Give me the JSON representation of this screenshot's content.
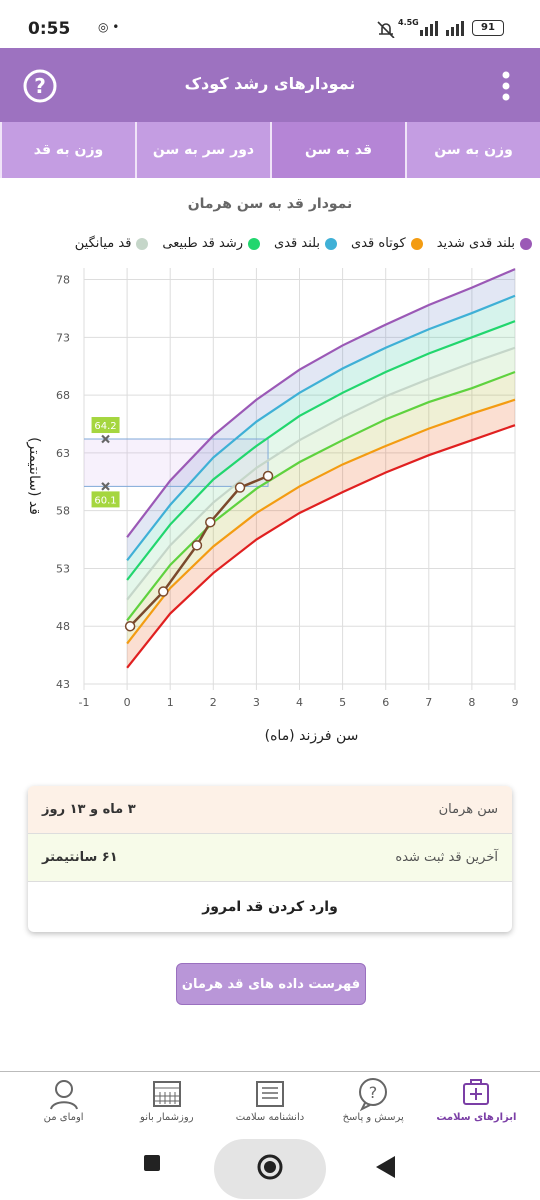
{
  "status_bar": {
    "time": "0:55",
    "network": "4.5G",
    "battery": "91"
  },
  "app_bar": {
    "title": "نمودارهای رشد کودک"
  },
  "tabs": [
    {
      "label": "وزن به سن",
      "selected": false
    },
    {
      "label": "قد به سن",
      "selected": true
    },
    {
      "label": "دور سر به سن",
      "selected": false
    },
    {
      "label": "وزن به قد",
      "selected": false
    }
  ],
  "chart_data": {
    "type": "line",
    "title": "نمودار قد به سن هرمان",
    "x_label": "سن فرزند (ماه)",
    "y_label": "قد (سانتیمتر)",
    "xlim": [
      -1,
      9
    ],
    "ylim": [
      43,
      79
    ],
    "xticks": [
      -1,
      0,
      1,
      2,
      3,
      4,
      5,
      6,
      7,
      8,
      9
    ],
    "yticks": [
      43,
      48,
      53,
      58,
      63,
      68,
      73,
      78
    ],
    "grid": true,
    "x": [
      0,
      1,
      2,
      3,
      4,
      5,
      6,
      7,
      8,
      9
    ],
    "series": [
      {
        "name": "بلند قدی شدید",
        "color": "#9b59b6",
        "values": [
          55.7,
          60.6,
          64.5,
          67.6,
          70.2,
          72.3,
          74.1,
          75.8,
          77.3,
          78.9
        ]
      },
      {
        "name": "کوتاه قدی",
        "color": "#f39c12",
        "values": [
          46.5,
          51.3,
          54.9,
          57.8,
          60.1,
          62.0,
          63.6,
          65.1,
          66.4,
          67.6
        ]
      },
      {
        "name": "بلند قدی",
        "color": "#3fb0d6",
        "values": [
          53.7,
          58.5,
          62.6,
          65.7,
          68.2,
          70.3,
          72.1,
          73.7,
          75.1,
          76.6
        ]
      },
      {
        "name": "رشد قد طبیعی",
        "color": "#22d66e",
        "values": [
          52.0,
          56.8,
          60.7,
          63.6,
          66.2,
          68.2,
          70.0,
          71.6,
          73.0,
          74.4
        ]
      },
      {
        "name": "قد میانگین",
        "color": "#c5d6c9",
        "values": [
          50.3,
          55.0,
          58.7,
          61.7,
          64.1,
          66.1,
          67.9,
          69.4,
          70.8,
          72.1
        ]
      },
      {
        "color": "#5fd23f",
        "values": [
          48.5,
          53.3,
          57.0,
          59.9,
          62.2,
          64.1,
          65.9,
          67.4,
          68.6,
          70.0
        ]
      },
      {
        "color": "#e02020",
        "values": [
          44.4,
          49.1,
          52.6,
          55.5,
          57.8,
          59.6,
          61.3,
          62.8,
          64.1,
          65.4
        ]
      },
      {
        "color": "#7b4a2c",
        "x": [
          0.07,
          0.84,
          1.62,
          1.93,
          2.62,
          3.27
        ],
        "values": [
          48,
          51,
          55,
          57,
          60,
          61
        ]
      }
    ],
    "markers": [
      {
        "x": -0.5,
        "y": 64.2,
        "color": "#a5d63f"
      },
      {
        "x": -0.5,
        "y": 60.1,
        "color": "#a5d63f"
      }
    ]
  },
  "info_card": {
    "rows": [
      {
        "label": "سن هرمان",
        "value": "۳ ماه و ۱۳ روز",
        "color": "#fdf1e7"
      },
      {
        "label": "آخرین قد ثبت شده",
        "value": "۶۱ سانتیمتر",
        "color": "#f7fbe9"
      }
    ],
    "action": "وارد کردن قد امروز"
  },
  "list_button": "فهرست داده های قد هرمان",
  "bottom_nav": [
    {
      "label": "ابزارهای سلامت",
      "active": true
    },
    {
      "label": "پرسش و پاسخ",
      "active": false
    },
    {
      "label": "دانشنامه سلامت",
      "active": false
    },
    {
      "label": "روزشمار بانو",
      "active": false
    },
    {
      "label": "اومای من",
      "active": false
    }
  ]
}
